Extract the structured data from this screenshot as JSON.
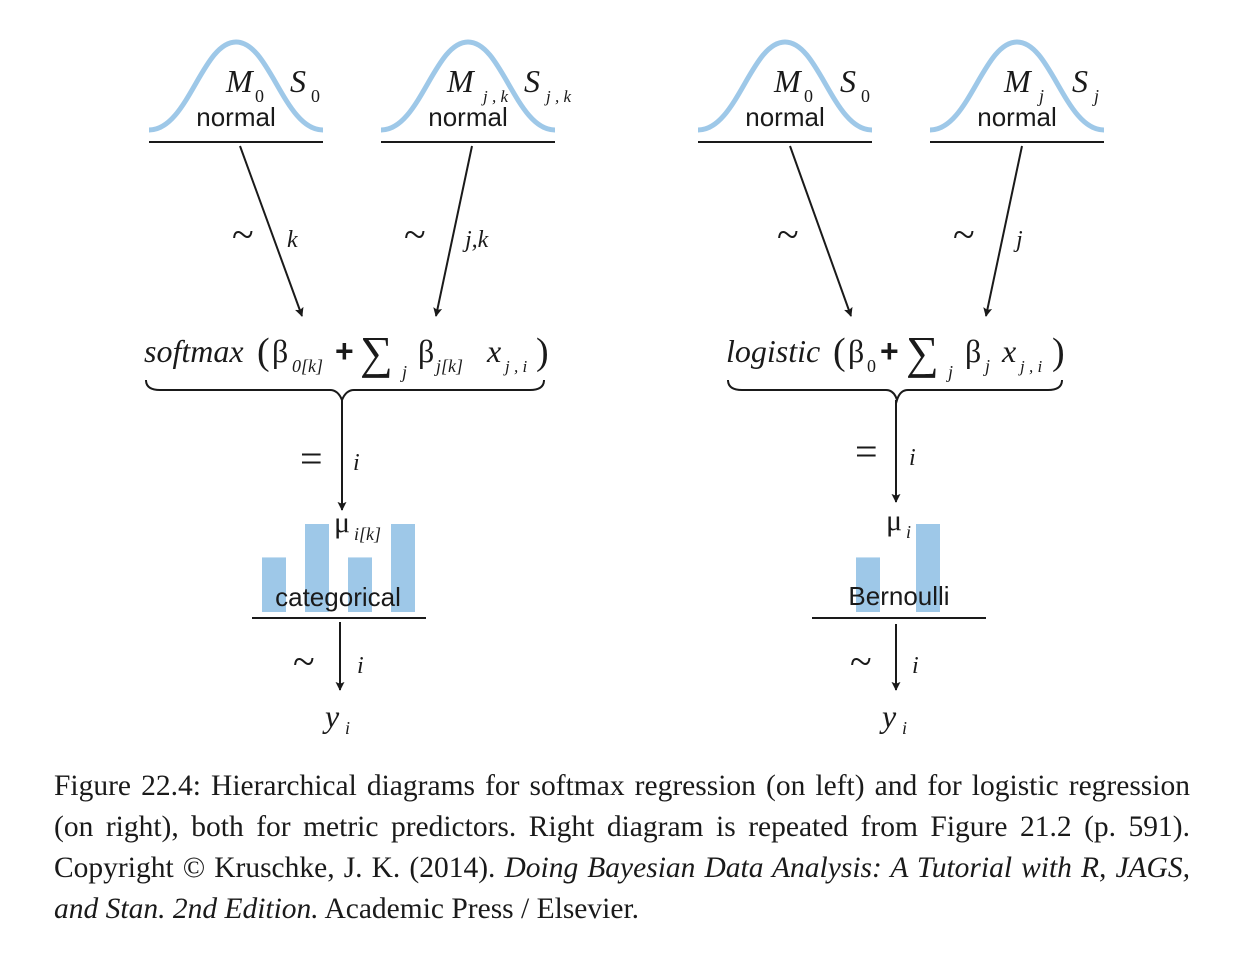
{
  "colors": {
    "distribution_curve": "#9ec8e8",
    "bar_fill": "#9ec8e8",
    "ink": "#1a1a1a"
  },
  "left_diagram": {
    "prior_intercept": {
      "mean": "M",
      "mean_sub": "0",
      "sd": "S",
      "sd_sub": "0",
      "label": "normal"
    },
    "prior_coef": {
      "mean": "M",
      "mean_sub": "j , k",
      "sd": "S",
      "sd_sub": "j , k",
      "label": "normal"
    },
    "arrow_intercept": {
      "tilde": "~",
      "index": "k"
    },
    "arrow_coef": {
      "tilde": "~",
      "index": "j,k"
    },
    "link_expression": {
      "fn": "softmax",
      "open": "(",
      "beta0": "β",
      "beta0_sub": "0[k]",
      "plus": "+",
      "sum": "∑",
      "sum_sub": "j",
      "beta": "β",
      "beta_sub": "j[k]",
      "x": "x",
      "x_sub": "j , i",
      "close": ")"
    },
    "arrow_link": {
      "eq": "=",
      "index": "i"
    },
    "param": {
      "symbol": "μ",
      "sub": "i[k]"
    },
    "likelihood": {
      "label": "categorical",
      "bar_heights": [
        0.62,
        1.0,
        0.62,
        1.0
      ]
    },
    "arrow_data": {
      "tilde": "~",
      "index": "i"
    },
    "data": {
      "symbol": "y",
      "sub": "i"
    }
  },
  "right_diagram": {
    "prior_intercept": {
      "mean": "M",
      "mean_sub": "0",
      "sd": "S",
      "sd_sub": "0",
      "label": "normal"
    },
    "prior_coef": {
      "mean": "M",
      "mean_sub": "j",
      "sd": "S",
      "sd_sub": "j",
      "label": "normal"
    },
    "arrow_intercept": {
      "tilde": "~"
    },
    "arrow_coef": {
      "tilde": "~",
      "index": "j"
    },
    "link_expression": {
      "fn": "logistic",
      "open": "(",
      "beta0": "β",
      "beta0_sub": "0",
      "plus": "+",
      "sum": "∑",
      "sum_sub": "j",
      "beta": "β",
      "beta_sub": "j",
      "x": "x",
      "x_sub": "j , i",
      "close": ")"
    },
    "arrow_link": {
      "eq": "=",
      "index": "i"
    },
    "param": {
      "symbol": "μ",
      "sub": "i"
    },
    "likelihood": {
      "label": "Bernoulli",
      "bar_heights": [
        0.62,
        1.0
      ]
    },
    "arrow_data": {
      "tilde": "~",
      "index": "i"
    },
    "data": {
      "symbol": "y",
      "sub": "i"
    }
  },
  "caption": {
    "text": "Figure 22.4: Hierarchical diagrams for softmax regression (on left) and for logistic regression (on right), both for metric predictors. Right diagram is repeated from Figure 21.2 (p. 591). Copyright © Kruschke, J. K. (2014).",
    "citation_italic": "Doing Bayesian Data Analysis: A Tutorial with R, JAGS, and Stan. 2nd Edition.",
    "publisher": "Academic Press / Elsevier."
  }
}
